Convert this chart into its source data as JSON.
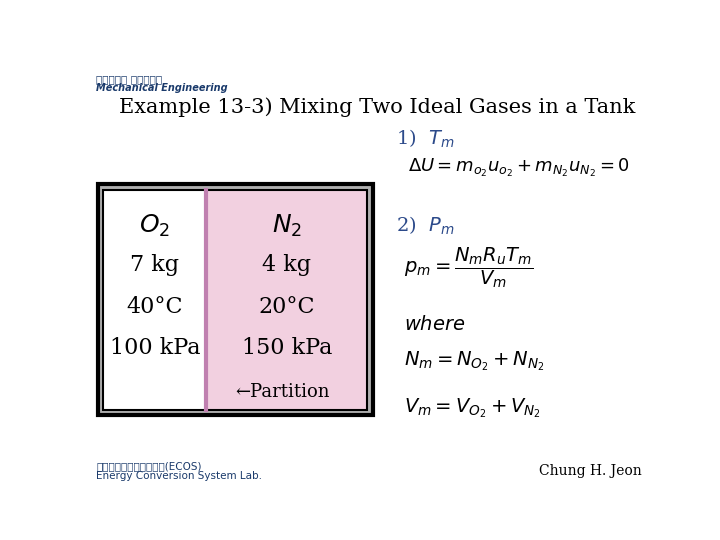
{
  "title": "Example 13-3) Mixing Two Ideal Gases in a Tank",
  "title_color": "#000000",
  "title_fontsize": 15,
  "header_line1": "부산대학교 기계공학부",
  "header_line2": "Mechanical Engineering",
  "header_color": "#1a3a6b",
  "footer_left1": "에너지변환시스템연구실(ECOS)",
  "footer_left2": "Energy Conversion System Lab.",
  "footer_right": "Chung H. Jeon",
  "bg_color": "#ffffff",
  "tank_bg": "#b0b0b0",
  "tank_border": "#000000",
  "left_cell_color": "#ffffff",
  "right_cell_color": "#f2d0e0",
  "partition_color": "#c080b0",
  "gas1_label": "$O_2$",
  "gas1_mass": "7 kg",
  "gas1_temp": "40°C",
  "gas1_pressure": "100 kPa",
  "gas2_label": "$N_2$",
  "gas2_mass": "4 kg",
  "gas2_temp": "20°C",
  "gas2_pressure": "150 kPa",
  "partition_label": "←Partition",
  "label_color": "#2c4a8a",
  "text_color": "#000000"
}
